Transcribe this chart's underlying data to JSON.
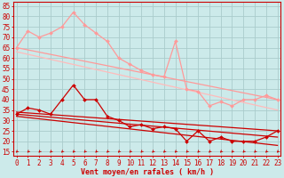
{
  "background_color": "#cceaea",
  "grid_color": "#aacccc",
  "x_ticks": [
    0,
    1,
    2,
    3,
    4,
    5,
    6,
    7,
    8,
    9,
    10,
    11,
    12,
    13,
    14,
    15,
    16,
    17,
    18,
    19,
    20,
    21,
    22,
    23
  ],
  "xlabel": "Vent moyen/en rafales ( km/h )",
  "ylabel_ticks": [
    15,
    20,
    25,
    30,
    35,
    40,
    45,
    50,
    55,
    60,
    65,
    70,
    75,
    80,
    85
  ],
  "ylim": [
    13,
    87
  ],
  "xlim": [
    -0.3,
    23.3
  ],
  "series": [
    {
      "color": "#ff9999",
      "lw": 0.9,
      "marker": "D",
      "ms": 2.0,
      "zorder": 3,
      "data": [
        [
          0,
          65
        ],
        [
          1,
          73
        ],
        [
          2,
          70
        ],
        [
          3,
          72
        ],
        [
          4,
          75
        ],
        [
          5,
          82
        ],
        [
          6,
          76
        ],
        [
          7,
          72
        ],
        [
          8,
          68
        ],
        [
          9,
          60
        ],
        [
          10,
          57
        ],
        [
          11,
          54
        ],
        [
          12,
          52
        ],
        [
          13,
          51
        ],
        [
          14,
          68
        ],
        [
          15,
          45
        ],
        [
          16,
          44
        ],
        [
          17,
          37
        ],
        [
          18,
          39
        ],
        [
          19,
          37
        ],
        [
          20,
          40
        ],
        [
          21,
          40
        ],
        [
          22,
          42
        ],
        [
          23,
          40
        ]
      ]
    },
    {
      "color": "#ff9999",
      "lw": 0.9,
      "marker": null,
      "ms": 0,
      "zorder": 2,
      "data": [
        [
          0,
          65
        ],
        [
          23,
          40
        ]
      ]
    },
    {
      "color": "#ffbbbb",
      "lw": 0.9,
      "marker": null,
      "ms": 0,
      "zorder": 2,
      "data": [
        [
          0,
          63
        ],
        [
          23,
          35
        ]
      ]
    },
    {
      "color": "#cc0000",
      "lw": 0.9,
      "marker": "D",
      "ms": 2.0,
      "zorder": 3,
      "data": [
        [
          0,
          33
        ],
        [
          1,
          36
        ],
        [
          2,
          35
        ],
        [
          3,
          33
        ],
        [
          4,
          40
        ],
        [
          5,
          47
        ],
        [
          6,
          40
        ],
        [
          7,
          40
        ],
        [
          8,
          32
        ],
        [
          9,
          30
        ],
        [
          10,
          27
        ],
        [
          11,
          28
        ],
        [
          12,
          26
        ],
        [
          13,
          27
        ],
        [
          14,
          26
        ],
        [
          15,
          20
        ],
        [
          16,
          25
        ],
        [
          17,
          20
        ],
        [
          18,
          22
        ],
        [
          19,
          20
        ],
        [
          20,
          20
        ],
        [
          21,
          20
        ],
        [
          22,
          22
        ],
        [
          23,
          25
        ]
      ]
    },
    {
      "color": "#cc0000",
      "lw": 0.9,
      "marker": null,
      "ms": 0,
      "zorder": 2,
      "data": [
        [
          0,
          34
        ],
        [
          23,
          25
        ]
      ]
    },
    {
      "color": "#cc0000",
      "lw": 0.9,
      "marker": null,
      "ms": 0,
      "zorder": 2,
      "data": [
        [
          0,
          33
        ],
        [
          23,
          22
        ]
      ]
    },
    {
      "color": "#cc0000",
      "lw": 0.9,
      "marker": null,
      "ms": 0,
      "zorder": 2,
      "data": [
        [
          0,
          32
        ],
        [
          23,
          18
        ]
      ]
    }
  ],
  "arrow_color": "#cc0000",
  "label_fontsize": 6,
  "tick_fontsize": 5.5
}
